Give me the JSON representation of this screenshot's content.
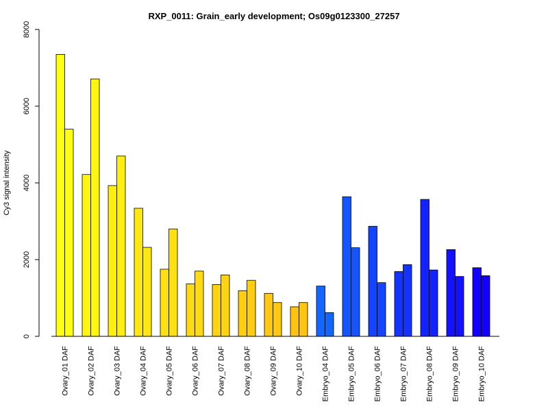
{
  "chart_data": {
    "type": "bar",
    "title": "RXP_0011: Grain_early development; Os09g0123300_27257",
    "xlabel": "",
    "ylabel": "Cy3 signal intensity",
    "ylim": [
      0,
      8000
    ],
    "yticks": [
      0,
      2000,
      4000,
      6000,
      8000
    ],
    "grid": false,
    "legend": "none",
    "categories": [
      "Ovary_01 DAF",
      "Ovary_02 DAF",
      "Ovary_03 DAF",
      "Ovary_04 DAF",
      "Ovary_05 DAF",
      "Ovary_06 DAF",
      "Ovary_07 DAF",
      "Ovary_08 DAF",
      "Ovary_09 DAF",
      "Ovary_10 DAF",
      "Embryo_04 DAF",
      "Embryo_05 DAF",
      "Embryo_06 DAF",
      "Embryo_07 DAF",
      "Embryo_08 DAF",
      "Embryo_09 DAF",
      "Embryo_10 DAF"
    ],
    "series": [
      {
        "values": [
          7350,
          4220,
          3930,
          3340,
          1750,
          1370,
          1350,
          1190,
          1120,
          770,
          1310,
          3640,
          2870,
          1690,
          3570,
          2260,
          1790
        ]
      },
      {
        "values": [
          5400,
          6710,
          4700,
          2320,
          2800,
          1700,
          1600,
          1460,
          880,
          880,
          620,
          2310,
          1400,
          1870,
          1730,
          1560,
          1580
        ]
      }
    ],
    "colors": [
      "#ffff14",
      "#fff514",
      "#ffee14",
      "#ffe714",
      "#ffe014",
      "#ffda14",
      "#ffd314",
      "#ffcd14",
      "#ffc814",
      "#ffc314",
      "#1466ff",
      "#1455ff",
      "#1444ff",
      "#1433ff",
      "#1422ff",
      "#1411ff",
      "#1400ff"
    ]
  }
}
